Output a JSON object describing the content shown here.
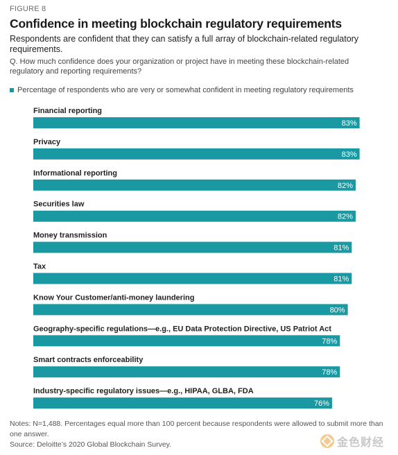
{
  "header": {
    "figure_label": "FIGURE 8",
    "title": "Confidence in meeting blockchain regulatory requirements",
    "subtitle": "Respondents are confident that they can satisfy a full array of blockchain-related regulatory requirements.",
    "question": "Q. How much confidence does your organization or project have in meeting these blockchain-related regulatory and reporting requirements?"
  },
  "colors": {
    "bar": "#1a99a2",
    "value_text": "#ffffff"
  },
  "chart_data": {
    "type": "bar",
    "orientation": "horizontal",
    "legend": [
      "Percentage of respondents who are very or somewhat confident in meeting regulatory requirements"
    ],
    "legend_position": "top-left",
    "categories": [
      "Financial reporting",
      "Privacy",
      "Informational reporting",
      "Securities law",
      "Money transmission",
      "Tax",
      "Know Your Customer/anti-money laundering",
      "Geography-specific regulations—e.g., EU Data Protection Directive, US Patriot Act",
      "Smart contracts enforceability",
      "Industry-specific regulatory issues—e.g., HIPAA, GLBA, FDA"
    ],
    "values": [
      83,
      83,
      82,
      82,
      81,
      81,
      80,
      78,
      78,
      76
    ],
    "value_labels": [
      "83%",
      "83%",
      "82%",
      "82%",
      "81%",
      "81%",
      "80%",
      "78%",
      "78%",
      "76%"
    ],
    "xlim": [
      0,
      100
    ],
    "grid": false
  },
  "footer": {
    "notes": "Notes: N=1,488. Percentages equal more than 100 percent because respondents were allowed to submit more than one answer.",
    "source": "Source: Deloitte’s 2020 Global Blockchain Survey."
  },
  "watermark": {
    "text": "金色财经",
    "icon": "jinse-logo-icon"
  }
}
